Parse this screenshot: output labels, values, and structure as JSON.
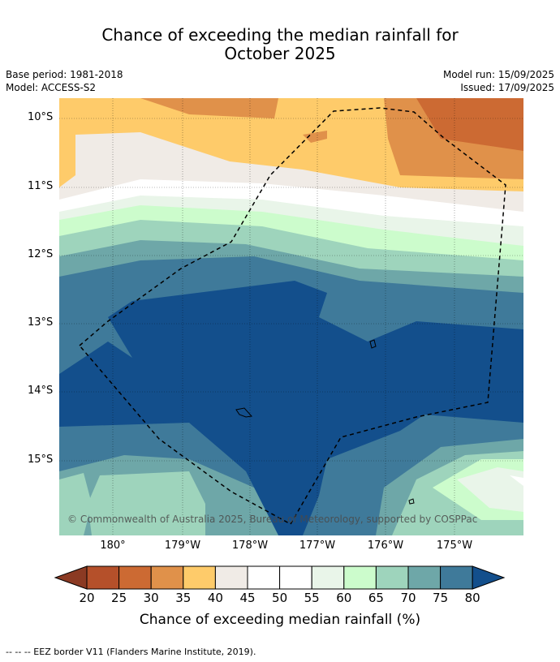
{
  "title": {
    "line1": "Chance of exceeding the median rainfall for",
    "line2": "October 2025"
  },
  "meta": {
    "base_period": "Base period: 1981-2018",
    "model": "Model: ACCESS-S2",
    "model_run": "Model run: 15/09/2025",
    "issued": "Issued: 17/09/2025"
  },
  "map": {
    "lat_labels": [
      "10°S",
      "11°S",
      "12°S",
      "13°S",
      "14°S",
      "15°S"
    ],
    "lon_labels": [
      "180°",
      "179°W",
      "178°W",
      "177°W",
      "176°W",
      "175°W"
    ],
    "copyright": "© Commonwealth of Australia 2025, Bureau of Meteorology, supported by COSPPac",
    "border_style": "dashed black (EEZ)"
  },
  "colorbar": {
    "label": "Chance of exceeding median rainfall (%)",
    "ticks": [
      "20",
      "25",
      "30",
      "35",
      "40",
      "45",
      "50",
      "55",
      "60",
      "65",
      "70",
      "75",
      "80"
    ],
    "colors": [
      "#8b3a23",
      "#b5502a",
      "#cc6a33",
      "#e0914a",
      "#fecb6a",
      "#f0ebe6",
      "#ffffff",
      "#ffffff",
      "#e9f5e9",
      "#ccfccc",
      "#9ed4bc",
      "#6ea7a8",
      "#3f7a9a",
      "#134f8c"
    ]
  },
  "footer": "--  --  -- EEZ border V11 (Flanders Marine Institute, 2019)."
}
